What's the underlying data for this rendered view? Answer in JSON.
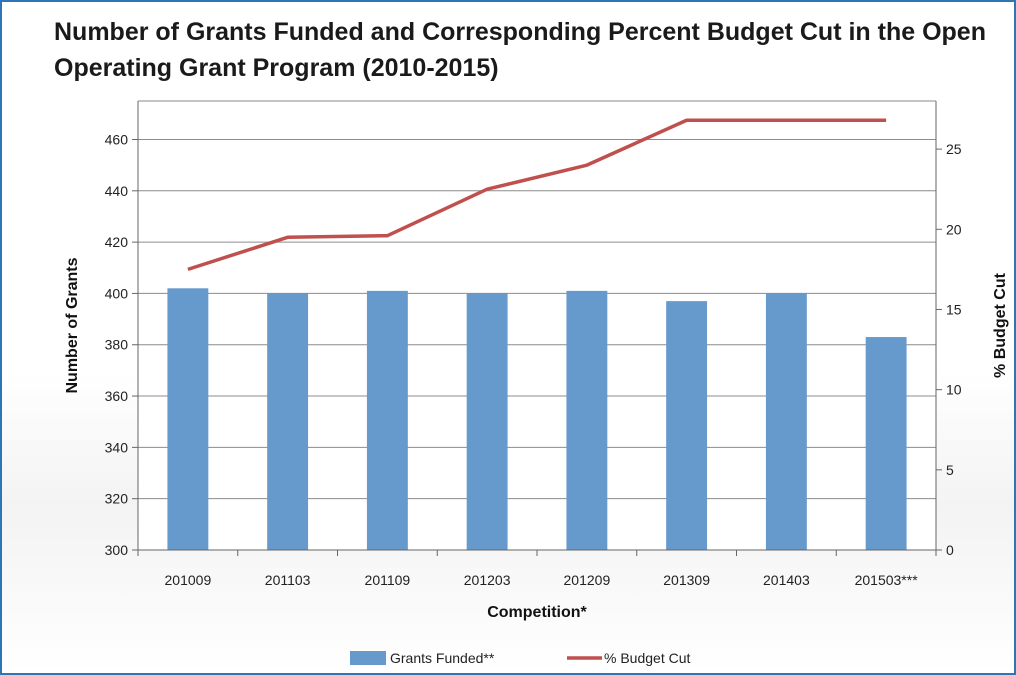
{
  "chart_data": {
    "type": "bar",
    "title": "Number of Grants Funded and Corresponding Percent Budget Cut in the Open Operating Grant Program (2010-2015)",
    "xlabel": "Competition*",
    "ylabel": "Number of Grants",
    "y2label": "% Budget Cut",
    "categories": [
      "201009",
      "201103",
      "201109",
      "201203",
      "201209",
      "201309",
      "201403",
      "201503***"
    ],
    "ylim": [
      300,
      475
    ],
    "yticks": [
      300,
      320,
      340,
      360,
      380,
      400,
      420,
      440,
      460
    ],
    "y2lim": [
      0,
      28
    ],
    "y2ticks": [
      0,
      5,
      10,
      15,
      20,
      25
    ],
    "grid": true,
    "legend_position": "bottom",
    "series": [
      {
        "name": "Grants Funded**",
        "type": "bar",
        "axis": "left",
        "color": "#6699cc",
        "values": [
          402,
          400,
          401,
          400,
          401,
          397,
          400,
          383
        ]
      },
      {
        "name": "% Budget Cut",
        "type": "line",
        "axis": "right",
        "color": "#c0504d",
        "values": [
          17.5,
          19.5,
          19.6,
          22.5,
          24.0,
          26.8,
          26.8,
          26.8
        ]
      }
    ]
  }
}
